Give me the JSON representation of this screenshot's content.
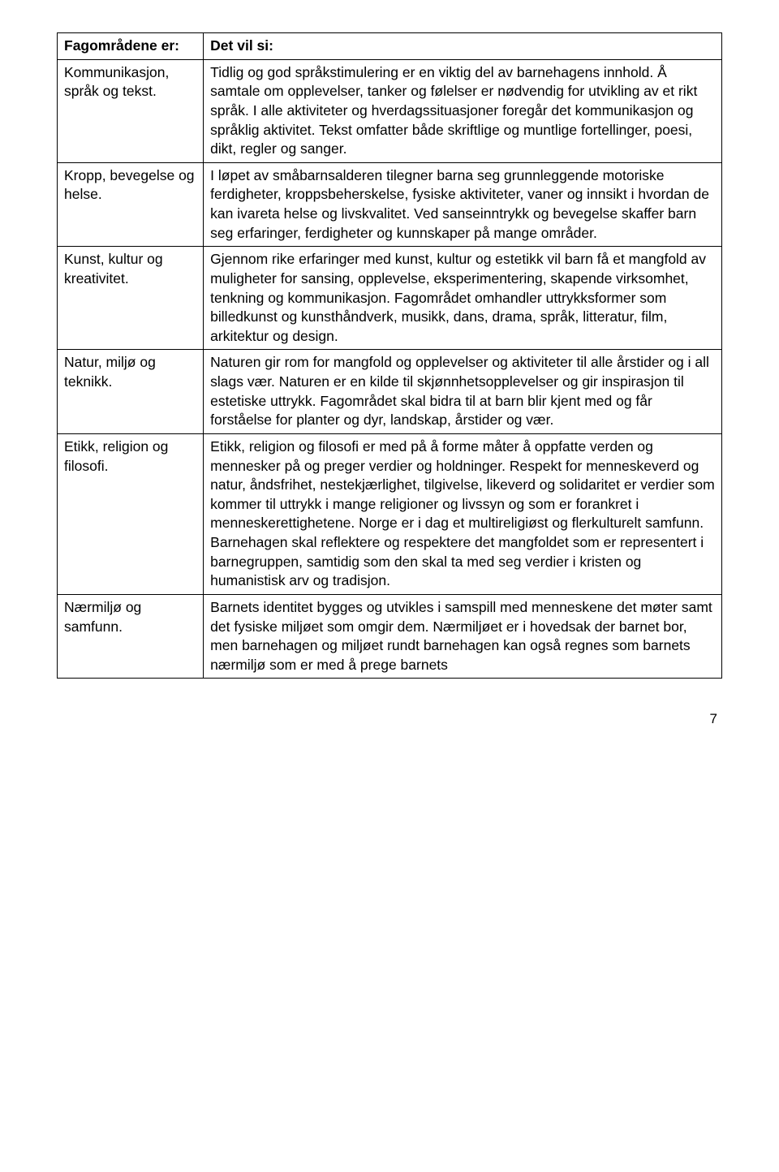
{
  "table": {
    "rows": [
      {
        "left_bold": "Fagområdene er:",
        "left_plain": "",
        "right_bold": "Det vil si:",
        "right_plain": ""
      },
      {
        "left_bold": "",
        "left_plain": "Kommunikasjon, språk og tekst.",
        "right_bold": "",
        "right_plain": "Tidlig og god språkstimulering er en viktig del av barnehagens innhold. Å samtale om opplevelser, tanker og følelser er nødvendig for utvikling av et rikt språk. I alle aktiviteter og hverdagssituasjoner foregår det kommunikasjon og språklig aktivitet. Tekst omfatter både skriftlige og muntlige fortellinger, poesi, dikt, regler og sanger."
      },
      {
        "left_bold": "",
        "left_plain": "Kropp, bevegelse og helse.",
        "right_bold": "",
        "right_plain": "I løpet av småbarnsalderen tilegner barna seg grunnleggende motoriske ferdigheter, kroppsbeherskelse, fysiske aktiviteter, vaner og innsikt i hvordan de kan ivareta helse og livskvalitet. Ved sanseinntrykk og bevegelse skaffer barn seg erfaringer, ferdigheter og kunnskaper på mange områder."
      },
      {
        "left_bold": "",
        "left_plain": "Kunst, kultur og kreativitet.",
        "right_bold": "",
        "right_plain": "Gjennom rike erfaringer med kunst, kultur og estetikk vil barn få et mangfold av muligheter for sansing, opplevelse, eksperimentering, skapende virksomhet, tenkning og kommunikasjon. Fagområdet omhandler uttrykksformer som billedkunst og kunsthåndverk, musikk, dans, drama, språk, litteratur, film, arkitektur og design."
      },
      {
        "left_bold": "",
        "left_plain": "Natur, miljø og teknikk.",
        "right_bold": "",
        "right_plain": "Naturen gir rom for mangfold og opplevelser og aktiviteter til alle årstider og i all slags vær. Naturen er en kilde til skjønnhetsopplevelser og gir inspirasjon til estetiske uttrykk. Fagområdet skal bidra til at barn blir kjent med og får forståelse for planter og dyr, landskap, årstider og vær."
      },
      {
        "left_bold": "",
        "left_plain": "Etikk, religion og filosofi.",
        "right_bold": "",
        "right_plain": "Etikk, religion og filosofi er med på å forme måter å oppfatte verden og mennesker på og preger verdier og holdninger. Respekt for menneskeverd og natur, åndsfrihet, nestekjærlighet, tilgivelse, likeverd og solidaritet er verdier som kommer til uttrykk i mange religioner og livssyn og som er forankret i menneskerettighetene. Norge er i dag et multireligiøst og flerkulturelt samfunn. Barnehagen skal reflektere og respektere det mangfoldet som er representert i barnegruppen, samtidig som den skal ta med seg verdier i kristen og humanistisk arv og tradisjon."
      },
      {
        "left_bold": "",
        "left_plain": "Nærmiljø og samfunn.",
        "right_bold": "",
        "right_plain": "Barnets identitet bygges og utvikles i samspill med menneskene det møter samt det fysiske miljøet som omgir dem. Nærmiljøet er i hovedsak der barnet bor, men barnehagen og miljøet rundt barnehagen kan også regnes som barnets nærmiljø som er med å prege barnets"
      }
    ]
  },
  "page_number": "7"
}
